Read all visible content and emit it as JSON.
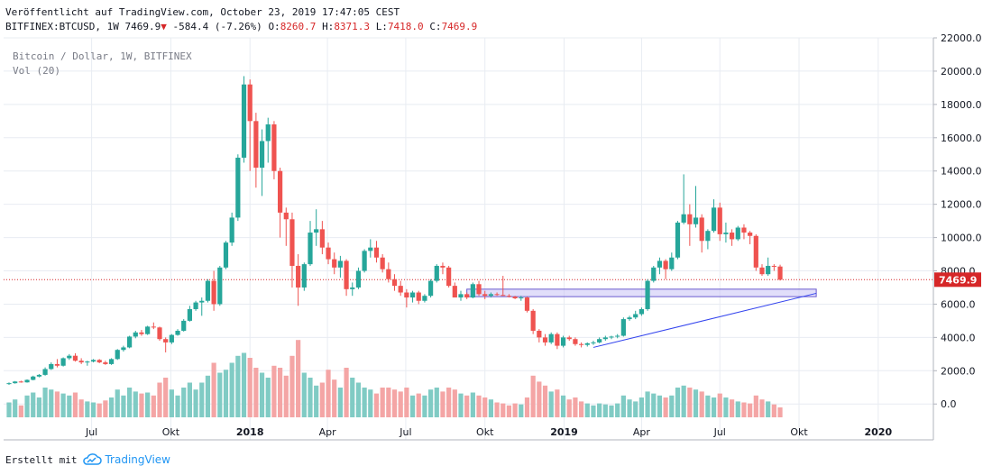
{
  "header": {
    "published": "Veröffentlicht auf TradingView.com, October 23, 2019 17:47:05 CEST",
    "symbol": "BITFINEX:BTCUSD, 1W",
    "price": "7469.9",
    "change": "-584.4 (-7.26%)",
    "o_label": "O:",
    "o_val": "8260.7",
    "h_label": "H:",
    "h_val": "8371.3",
    "l_label": "L:",
    "l_val": "7418.0",
    "c_label": "C:",
    "c_val": "7469.9"
  },
  "overlay": {
    "series_title": "Bitcoin / Dollar, 1W, BITFINEX",
    "volume_title": "Vol (20)"
  },
  "footer": {
    "created_with": "Erstellt mit",
    "brand": "TradingView"
  },
  "colors": {
    "up": "#26a69a",
    "down": "#ef5350",
    "up_volume": "#80cbc4",
    "down_volume": "#f4a5a5",
    "grid": "#e8ecf2",
    "price_line": "#d62728",
    "trendline": "#3344ee",
    "support_zone": "#c9c2f5"
  },
  "chart_data": {
    "type": "candlestick",
    "timeframe": "1W",
    "y_range": [
      -800,
      22000
    ],
    "y_ticks": [
      "22000.0",
      "20000.0",
      "18000.0",
      "16000.0",
      "14000.0",
      "12000.0",
      "10000.0",
      "8000.0",
      "6000.0",
      "4000.0",
      "2000.0",
      "0.0"
    ],
    "x_labels": [
      {
        "label": "Jul",
        "bold": false,
        "date": "2017-07-01"
      },
      {
        "label": "Okt",
        "bold": false,
        "date": "2017-10-01"
      },
      {
        "label": "2018",
        "bold": true,
        "date": "2018-01-01"
      },
      {
        "label": "Apr",
        "bold": false,
        "date": "2018-04-01"
      },
      {
        "label": "Jul",
        "bold": false,
        "date": "2018-07-01"
      },
      {
        "label": "Okt",
        "bold": false,
        "date": "2018-10-01"
      },
      {
        "label": "2019",
        "bold": true,
        "date": "2019-01-01"
      },
      {
        "label": "Apr",
        "bold": false,
        "date": "2019-04-01"
      },
      {
        "label": "Jul",
        "bold": false,
        "date": "2019-07-01"
      },
      {
        "label": "Okt",
        "bold": false,
        "date": "2019-10-01"
      },
      {
        "label": "2020",
        "bold": true,
        "date": "2020-01-01"
      }
    ],
    "last_price": 7469.9,
    "volume_max": 1.0,
    "first_week": "2017-03-27",
    "candles": [
      [
        1200,
        1300,
        1150,
        1250,
        0.15
      ],
      [
        1250,
        1380,
        1220,
        1350,
        0.18
      ],
      [
        1350,
        1400,
        1280,
        1300,
        0.12
      ],
      [
        1300,
        1480,
        1280,
        1450,
        0.22
      ],
      [
        1450,
        1700,
        1420,
        1650,
        0.25
      ],
      [
        1650,
        1800,
        1600,
        1750,
        0.2
      ],
      [
        1750,
        2200,
        1700,
        2100,
        0.3
      ],
      [
        2100,
        2500,
        2050,
        2400,
        0.28
      ],
      [
        2400,
        2700,
        2200,
        2300,
        0.26
      ],
      [
        2300,
        2800,
        2250,
        2750,
        0.24
      ],
      [
        2750,
        3000,
        2650,
        2900,
        0.22
      ],
      [
        2900,
        3050,
        2550,
        2600,
        0.25
      ],
      [
        2600,
        2750,
        2400,
        2500,
        0.18
      ],
      [
        2500,
        2600,
        2300,
        2550,
        0.16
      ],
      [
        2550,
        2700,
        2500,
        2650,
        0.15
      ],
      [
        2650,
        2700,
        2450,
        2500,
        0.14
      ],
      [
        2500,
        2600,
        2350,
        2400,
        0.17
      ],
      [
        2400,
        2750,
        2350,
        2700,
        0.2
      ],
      [
        2700,
        3300,
        2650,
        3250,
        0.28
      ],
      [
        3250,
        3500,
        3150,
        3400,
        0.22
      ],
      [
        3400,
        4100,
        3350,
        4050,
        0.3
      ],
      [
        4050,
        4400,
        3950,
        4300,
        0.26
      ],
      [
        4300,
        4450,
        4100,
        4200,
        0.24
      ],
      [
        4200,
        4700,
        4150,
        4650,
        0.25
      ],
      [
        4650,
        4900,
        4500,
        4600,
        0.22
      ],
      [
        4600,
        4650,
        3800,
        3900,
        0.35
      ],
      [
        3900,
        4000,
        3100,
        3700,
        0.4
      ],
      [
        3700,
        4200,
        3600,
        4150,
        0.28
      ],
      [
        4150,
        4500,
        4100,
        4400,
        0.22
      ],
      [
        4400,
        5100,
        4350,
        5000,
        0.3
      ],
      [
        5000,
        5900,
        4950,
        5700,
        0.35
      ],
      [
        5700,
        6200,
        5600,
        6100,
        0.28
      ],
      [
        6100,
        6400,
        5300,
        6200,
        0.35
      ],
      [
        6200,
        7500,
        6100,
        7400,
        0.42
      ],
      [
        7400,
        8000,
        5600,
        6000,
        0.55
      ],
      [
        6000,
        8300,
        5900,
        8200,
        0.45
      ],
      [
        8200,
        9800,
        8100,
        9700,
        0.48
      ],
      [
        9700,
        11500,
        9500,
        11200,
        0.55
      ],
      [
        11200,
        15000,
        11000,
        14800,
        0.62
      ],
      [
        14800,
        19700,
        14500,
        19200,
        0.65
      ],
      [
        19200,
        19500,
        14000,
        17000,
        0.6
      ],
      [
        17000,
        17500,
        13000,
        14200,
        0.5
      ],
      [
        14200,
        16500,
        12500,
        15800,
        0.45
      ],
      [
        15800,
        17200,
        14500,
        16800,
        0.4
      ],
      [
        16800,
        17000,
        13500,
        14000,
        0.52
      ],
      [
        14000,
        14200,
        10000,
        11500,
        0.5
      ],
      [
        11500,
        11800,
        9500,
        11100,
        0.42
      ],
      [
        11100,
        11500,
        7000,
        8300,
        0.62
      ],
      [
        8300,
        9000,
        5900,
        7000,
        0.78
      ],
      [
        7000,
        8500,
        6800,
        8400,
        0.45
      ],
      [
        8400,
        11000,
        8300,
        10300,
        0.4
      ],
      [
        10300,
        11700,
        9500,
        10500,
        0.32
      ],
      [
        10500,
        11000,
        9000,
        9400,
        0.35
      ],
      [
        9400,
        9700,
        8400,
        8700,
        0.48
      ],
      [
        8700,
        9100,
        7800,
        8200,
        0.38
      ],
      [
        8200,
        8900,
        7600,
        8600,
        0.3
      ],
      [
        8600,
        8700,
        6500,
        6900,
        0.5
      ],
      [
        6900,
        7300,
        6500,
        7000,
        0.4
      ],
      [
        7000,
        8200,
        6900,
        8000,
        0.35
      ],
      [
        8000,
        9300,
        7900,
        9200,
        0.3
      ],
      [
        9200,
        9900,
        8800,
        9400,
        0.28
      ],
      [
        9400,
        9800,
        8500,
        8800,
        0.24
      ],
      [
        8800,
        9000,
        7900,
        8100,
        0.3
      ],
      [
        8100,
        8500,
        7300,
        7500,
        0.3
      ],
      [
        7500,
        7800,
        6800,
        7100,
        0.28
      ],
      [
        7100,
        7400,
        6500,
        6700,
        0.26
      ],
      [
        6700,
        6900,
        5800,
        6400,
        0.3
      ],
      [
        6400,
        6800,
        6100,
        6700,
        0.22
      ],
      [
        6700,
        6800,
        6000,
        6200,
        0.24
      ],
      [
        6200,
        6600,
        6100,
        6500,
        0.22
      ],
      [
        6500,
        7500,
        6400,
        7400,
        0.28
      ],
      [
        7400,
        8400,
        7300,
        8300,
        0.3
      ],
      [
        8300,
        8500,
        7800,
        8200,
        0.26
      ],
      [
        8200,
        8300,
        7000,
        7100,
        0.3
      ],
      [
        7100,
        7300,
        6500,
        6400,
        0.28
      ],
      [
        6400,
        6800,
        6200,
        6600,
        0.24
      ],
      [
        6600,
        6700,
        6300,
        6400,
        0.22
      ],
      [
        6400,
        7300,
        6350,
        7200,
        0.25
      ],
      [
        7200,
        7400,
        6500,
        6600,
        0.22
      ],
      [
        6600,
        6800,
        6300,
        6500,
        0.2
      ],
      [
        6500,
        6700,
        6400,
        6600,
        0.18
      ],
      [
        6600,
        6700,
        6500,
        6550,
        0.15
      ],
      [
        6550,
        7700,
        6500,
        6500,
        0.14
      ],
      [
        6500,
        6600,
        6400,
        6450,
        0.12
      ],
      [
        6450,
        6500,
        6300,
        6350,
        0.14
      ],
      [
        6350,
        6500,
        6200,
        6400,
        0.13
      ],
      [
        6400,
        6450,
        5500,
        5600,
        0.2
      ],
      [
        5600,
        5700,
        4200,
        4400,
        0.42
      ],
      [
        4400,
        4500,
        3700,
        4000,
        0.36
      ],
      [
        4000,
        4200,
        3500,
        3700,
        0.32
      ],
      [
        3700,
        4300,
        3600,
        4200,
        0.26
      ],
      [
        4200,
        4300,
        3300,
        3500,
        0.28
      ],
      [
        3500,
        4100,
        3400,
        4000,
        0.22
      ],
      [
        4000,
        4100,
        3800,
        3900,
        0.18
      ],
      [
        3900,
        4000,
        3500,
        3600,
        0.2
      ],
      [
        3600,
        3700,
        3400,
        3550,
        0.16
      ],
      [
        3550,
        3700,
        3450,
        3650,
        0.14
      ],
      [
        3650,
        3800,
        3550,
        3700,
        0.12
      ],
      [
        3700,
        4000,
        3650,
        3900,
        0.14
      ],
      [
        3900,
        4100,
        3800,
        4000,
        0.13
      ],
      [
        4000,
        4100,
        3900,
        4050,
        0.12
      ],
      [
        4050,
        4200,
        3950,
        4100,
        0.14
      ],
      [
        4100,
        5200,
        4050,
        5100,
        0.22
      ],
      [
        5100,
        5300,
        5000,
        5200,
        0.18
      ],
      [
        5200,
        5600,
        5100,
        5400,
        0.16
      ],
      [
        5400,
        5800,
        5300,
        5700,
        0.2
      ],
      [
        5700,
        7500,
        5600,
        7400,
        0.26
      ],
      [
        7400,
        8300,
        7300,
        8200,
        0.24
      ],
      [
        8200,
        8800,
        7800,
        8600,
        0.22
      ],
      [
        8600,
        8700,
        7500,
        8100,
        0.2
      ],
      [
        8100,
        9100,
        8000,
        8800,
        0.22
      ],
      [
        8800,
        11000,
        8700,
        10900,
        0.3
      ],
      [
        10900,
        13800,
        10800,
        11400,
        0.32
      ],
      [
        11400,
        12000,
        9500,
        10800,
        0.3
      ],
      [
        10800,
        13100,
        10600,
        11200,
        0.28
      ],
      [
        11200,
        11400,
        9100,
        9800,
        0.26
      ],
      [
        9800,
        10500,
        9300,
        10400,
        0.22
      ],
      [
        10400,
        12300,
        10300,
        11800,
        0.2
      ],
      [
        11800,
        12100,
        9800,
        10200,
        0.24
      ],
      [
        10200,
        10900,
        9700,
        10300,
        0.2
      ],
      [
        10300,
        10500,
        9500,
        9900,
        0.18
      ],
      [
        9900,
        10700,
        9800,
        10600,
        0.16
      ],
      [
        10600,
        10800,
        9900,
        10300,
        0.15
      ],
      [
        10300,
        10400,
        9600,
        10100,
        0.14
      ],
      [
        10100,
        10200,
        8000,
        8200,
        0.22
      ],
      [
        8200,
        8400,
        7700,
        7800,
        0.18
      ],
      [
        7800,
        8800,
        7700,
        8300,
        0.16
      ],
      [
        8300,
        8400,
        8000,
        8260,
        0.13
      ],
      [
        8260,
        8371,
        7418,
        7470,
        0.1
      ]
    ],
    "annotations": {
      "support_zone": {
        "from_week": 76,
        "to_week": 134,
        "low": 6450,
        "high": 6900
      },
      "trendline": {
        "from_week": 97,
        "from_price": 3400,
        "to_week": 134,
        "to_price": 6650
      }
    }
  }
}
